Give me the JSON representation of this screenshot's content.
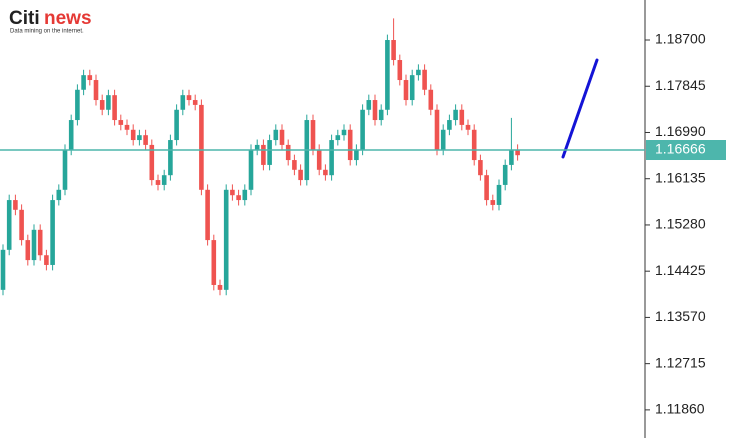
{
  "logo": {
    "brand": "Citi",
    "brand2": "news",
    "tagline": "Data mining on the internet."
  },
  "chart_data": {
    "type": "candlestick",
    "up_color": "#26a69a",
    "down_color": "#ef5350",
    "price_line_color": "#4db6ac",
    "ylim": [
      1.1134,
      1.1944
    ],
    "yticks": [
      {
        "value": 1.187,
        "label": "1.18700"
      },
      1.17845,
      {
        "value": 1.1699,
        "label": "1.16990"
      },
      1.16135,
      {
        "value": 1.1528,
        "label": "1.15280"
      },
      1.14425,
      {
        "value": 1.1357,
        "label": "1.13570"
      },
      1.12715,
      {
        "value": 1.1186,
        "label": "1.11860"
      }
    ],
    "current_price": 1.16666,
    "open": [
      1.1408,
      1.1482,
      1.1574,
      1.1556,
      1.15,
      1.1463,
      1.1519,
      1.1472,
      1.1454,
      1.1574,
      1.1593,
      1.1667,
      1.1722,
      1.1778,
      1.1805,
      1.1796,
      1.1759,
      1.1741,
      1.1768,
      1.1722,
      1.1713,
      1.1704,
      1.1685,
      1.1694,
      1.1676,
      1.1611,
      1.1602,
      1.162,
      1.1685,
      1.1741,
      1.1768,
      1.1759,
      1.175,
      1.1593,
      1.15,
      1.1417,
      1.1408,
      1.1593,
      1.1583,
      1.1574,
      1.1593,
      1.1667,
      1.1676,
      1.1639,
      1.1685,
      1.1704,
      1.1676,
      1.1648,
      1.163,
      1.1611,
      1.1722,
      1.1667,
      1.163,
      1.162,
      1.1685,
      1.1694,
      1.1704,
      1.1648,
      1.1667,
      1.1741,
      1.1759,
      1.1722,
      1.1741,
      1.187,
      1.1833,
      1.1796,
      1.1759,
      1.1805,
      1.1815,
      1.1778,
      1.1741,
      1.1667,
      1.1704,
      1.1722,
      1.1741,
      1.1713,
      1.1704,
      1.1648,
      1.162,
      1.1574,
      1.1565,
      1.1602,
      1.1639,
      1.1667
    ],
    "high": [
      1.1492,
      1.1584,
      1.1584,
      1.1566,
      1.151,
      1.1529,
      1.1529,
      1.1482,
      1.1584,
      1.1603,
      1.1677,
      1.1732,
      1.1788,
      1.1815,
      1.1815,
      1.1806,
      1.1769,
      1.1778,
      1.1778,
      1.1732,
      1.1723,
      1.1714,
      1.1704,
      1.1704,
      1.1686,
      1.1621,
      1.163,
      1.1695,
      1.1751,
      1.1778,
      1.1778,
      1.1769,
      1.176,
      1.1603,
      1.151,
      1.1427,
      1.1603,
      1.1603,
      1.1593,
      1.1603,
      1.1677,
      1.1686,
      1.1686,
      1.1695,
      1.1714,
      1.1714,
      1.1686,
      1.1658,
      1.164,
      1.1732,
      1.1732,
      1.1677,
      1.164,
      1.1695,
      1.1704,
      1.1714,
      1.1714,
      1.1677,
      1.1751,
      1.1769,
      1.1769,
      1.1751,
      1.188,
      1.191,
      1.1843,
      1.1806,
      1.1815,
      1.1825,
      1.1825,
      1.1788,
      1.1751,
      1.1714,
      1.1732,
      1.1751,
      1.1751,
      1.1723,
      1.1714,
      1.1658,
      1.163,
      1.1584,
      1.1612,
      1.1649,
      1.1726,
      1.1677
    ],
    "low": [
      1.1398,
      1.1472,
      1.1546,
      1.149,
      1.1453,
      1.1453,
      1.1462,
      1.1444,
      1.1444,
      1.1564,
      1.1583,
      1.1657,
      1.1712,
      1.1768,
      1.1786,
      1.1749,
      1.1731,
      1.1731,
      1.1712,
      1.1703,
      1.1694,
      1.1675,
      1.1675,
      1.1666,
      1.1601,
      1.1592,
      1.1592,
      1.161,
      1.1675,
      1.1731,
      1.1749,
      1.174,
      1.1583,
      1.149,
      1.1407,
      1.1398,
      1.1398,
      1.1573,
      1.1564,
      1.1564,
      1.1583,
      1.1657,
      1.1629,
      1.1629,
      1.1675,
      1.1666,
      1.1638,
      1.162,
      1.1601,
      1.1601,
      1.1657,
      1.162,
      1.161,
      1.161,
      1.1675,
      1.1684,
      1.1638,
      1.1638,
      1.1657,
      1.1731,
      1.1712,
      1.1712,
      1.1731,
      1.1823,
      1.1786,
      1.1749,
      1.1749,
      1.1795,
      1.1768,
      1.1731,
      1.1657,
      1.1657,
      1.1694,
      1.1712,
      1.1703,
      1.1694,
      1.1638,
      1.161,
      1.1564,
      1.1555,
      1.1555,
      1.1592,
      1.1629,
      1.1647
    ],
    "close": [
      1.1482,
      1.1574,
      1.1556,
      1.15,
      1.1463,
      1.1519,
      1.1472,
      1.1454,
      1.1574,
      1.1593,
      1.1667,
      1.1722,
      1.1778,
      1.1805,
      1.1796,
      1.1759,
      1.1741,
      1.1768,
      1.1722,
      1.1713,
      1.1704,
      1.1685,
      1.1694,
      1.1676,
      1.1611,
      1.1602,
      1.162,
      1.1685,
      1.1741,
      1.1768,
      1.1759,
      1.175,
      1.1593,
      1.15,
      1.1417,
      1.1408,
      1.1593,
      1.1583,
      1.1574,
      1.1593,
      1.1667,
      1.1676,
      1.1639,
      1.1685,
      1.1704,
      1.1676,
      1.1648,
      1.163,
      1.1611,
      1.1722,
      1.1667,
      1.163,
      1.162,
      1.1685,
      1.1694,
      1.1704,
      1.1648,
      1.1667,
      1.1741,
      1.1759,
      1.1722,
      1.1741,
      1.187,
      1.1833,
      1.1796,
      1.1759,
      1.1805,
      1.1815,
      1.1778,
      1.1741,
      1.1667,
      1.1704,
      1.1722,
      1.1741,
      1.1713,
      1.1704,
      1.1648,
      1.162,
      1.1574,
      1.1565,
      1.1602,
      1.1639,
      1.1667,
      1.1657
    ]
  }
}
